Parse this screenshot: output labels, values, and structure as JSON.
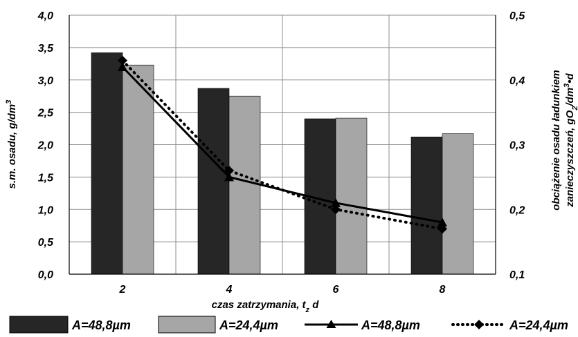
{
  "chart_data": {
    "type": "bar",
    "categories": [
      "2",
      "4",
      "6",
      "8"
    ],
    "xlabel": "czas zatrzymania, t",
    "xlabel_sub": "z",
    "xlabel_tail": " d",
    "ylabel_main": "s.m. osadu, g/dm",
    "ylabel_main_sup": "3",
    "ylabel_right_line1": "obciążenie osadu ładunkiem",
    "ylabel_right_line2": "zanieczyszczeń, gO",
    "ylabel_right_line2_sub": "2",
    "ylabel_right_line2_tail": "/dm",
    "ylabel_right_line2_sup": "3",
    "ylabel_right_line2_end": "•d",
    "ylim_left": [
      0,
      4
    ],
    "yticks_left": [
      "0,0",
      "0,5",
      "1,0",
      "1,5",
      "2,0",
      "2,5",
      "3,0",
      "3,5",
      "4,0"
    ],
    "ylim_right": [
      0.1,
      0.5
    ],
    "yticks_right": [
      "0,1",
      "0,2",
      "0,3",
      "0,4",
      "0,5"
    ],
    "bar_series": [
      {
        "name": "A=48,8µm",
        "values": [
          3.42,
          2.87,
          2.4,
          2.12
        ],
        "color": "#262626"
      },
      {
        "name": "A=24,4µm",
        "values": [
          3.23,
          2.75,
          2.41,
          2.17
        ],
        "color": "#a6a6a6"
      }
    ],
    "line_series": [
      {
        "name": "A=48,8µm",
        "values": [
          0.42,
          0.25,
          0.21,
          0.18
        ],
        "style": "solid",
        "marker": "triangle"
      },
      {
        "name": "A=24,4µm",
        "values": [
          0.43,
          0.26,
          0.2,
          0.17
        ],
        "style": "dotted",
        "marker": "diamond"
      }
    ],
    "grid": true
  }
}
